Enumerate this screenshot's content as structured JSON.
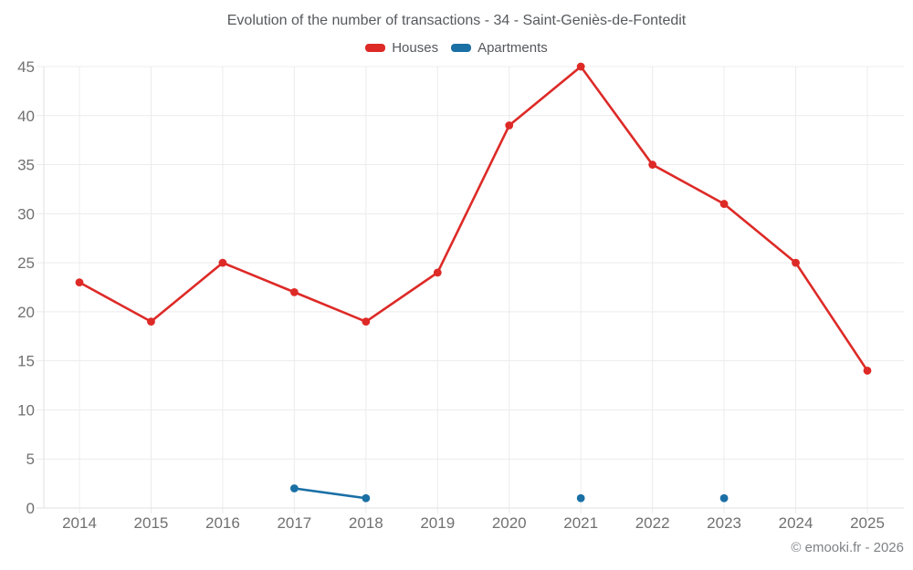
{
  "chart_data": {
    "type": "line",
    "title": "Evolution of the number of transactions - 34 - Saint-Geniès-de-Fontedit",
    "categories": [
      "2014",
      "2015",
      "2016",
      "2017",
      "2018",
      "2019",
      "2020",
      "2021",
      "2022",
      "2023",
      "2024",
      "2025"
    ],
    "series": [
      {
        "name": "Houses",
        "color": "#dd2a27",
        "values": [
          23,
          19,
          25,
          22,
          19,
          24,
          39,
          45,
          35,
          31,
          25,
          14
        ]
      },
      {
        "name": "Apartments",
        "color": "#1a6fa5",
        "values": [
          null,
          null,
          null,
          2,
          1,
          null,
          null,
          1,
          null,
          1,
          null,
          null
        ]
      }
    ],
    "ylim": [
      0,
      45
    ],
    "ytick_step": 5,
    "grid": true,
    "legend_position": "top",
    "xlabel": "",
    "ylabel": ""
  },
  "footer": {
    "copyright": "© emooki.fr - 2026"
  },
  "style": {
    "grid_color": "#ececec",
    "axis_color": "#e2e2e2",
    "tick_label_color": "#717171"
  }
}
